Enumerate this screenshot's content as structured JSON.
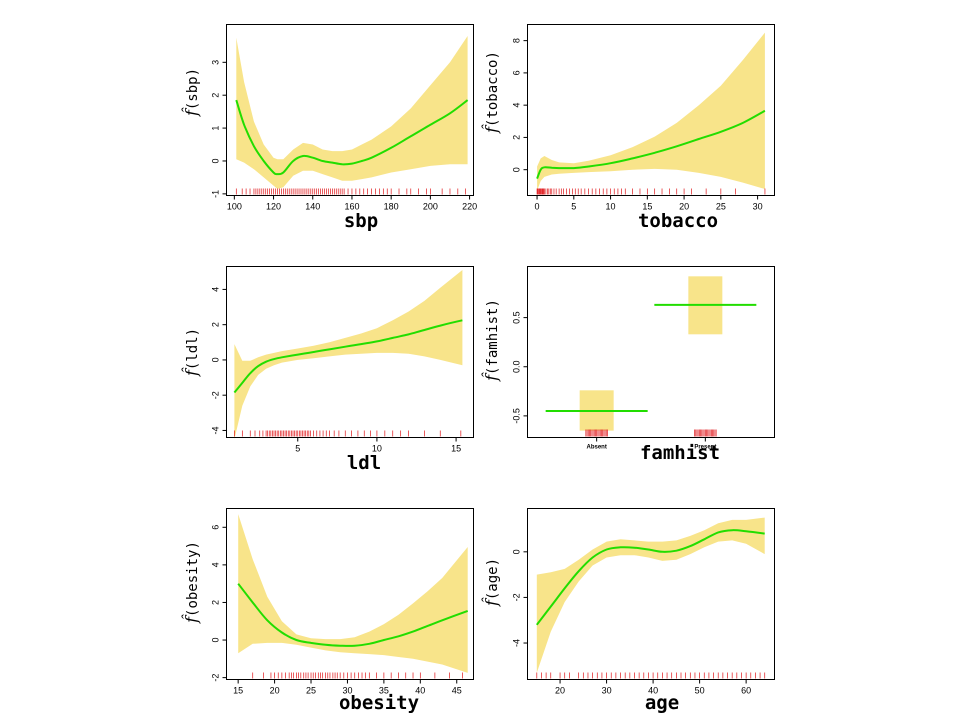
{
  "chart_data": [
    {
      "type": "line",
      "xlabel": "sbp",
      "ylabel": "sbp",
      "xlim": [
        96,
        222
      ],
      "ylim": [
        -1.05,
        4.15
      ],
      "xticks": [
        100,
        120,
        140,
        160,
        180,
        200,
        220
      ],
      "yticks": [
        -1,
        0,
        1,
        2,
        3
      ],
      "x": [
        101,
        105,
        110,
        115,
        120,
        122,
        125,
        130,
        135,
        140,
        145,
        150,
        155,
        160,
        165,
        170,
        180,
        190,
        200,
        210,
        219
      ],
      "fit": [
        1.85,
        1.1,
        0.45,
        0.0,
        -0.35,
        -0.4,
        -0.35,
        0.0,
        0.15,
        0.1,
        0.0,
        -0.05,
        -0.1,
        -0.08,
        0.0,
        0.1,
        0.4,
        0.75,
        1.1,
        1.45,
        1.85
      ],
      "lower": [
        0.05,
        -0.05,
        -0.25,
        -0.5,
        -0.75,
        -0.85,
        -0.8,
        -0.45,
        -0.3,
        -0.3,
        -0.4,
        -0.5,
        -0.6,
        -0.6,
        -0.55,
        -0.5,
        -0.35,
        -0.25,
        -0.15,
        -0.1,
        -0.1
      ],
      "upper": [
        3.75,
        2.4,
        1.2,
        0.5,
        0.1,
        0.05,
        0.05,
        0.35,
        0.55,
        0.5,
        0.35,
        0.3,
        0.3,
        0.35,
        0.5,
        0.65,
        1.05,
        1.6,
        2.3,
        3.0,
        3.8
      ],
      "rug": [
        101,
        104,
        106,
        108,
        110,
        111,
        112,
        113,
        114,
        115,
        116,
        117,
        118,
        119,
        120,
        121,
        122,
        123,
        124,
        125,
        126,
        127,
        128,
        129,
        130,
        131,
        132,
        133,
        134,
        135,
        136,
        137,
        138,
        139,
        140,
        141,
        142,
        143,
        144,
        145,
        146,
        147,
        148,
        149,
        150,
        151,
        152,
        153,
        154,
        155,
        156,
        158,
        160,
        162,
        164,
        166,
        168,
        170,
        172,
        174,
        176,
        178,
        180,
        184,
        188,
        190,
        194,
        198,
        200,
        206,
        210,
        214,
        218
      ]
    },
    {
      "type": "line",
      "xlabel": "tobacco",
      "ylabel": "tobacco",
      "xlim": [
        -1.3,
        32.3
      ],
      "ylim": [
        -1.6,
        9.0
      ],
      "xticks": [
        0,
        5,
        10,
        15,
        20,
        25,
        30
      ],
      "yticks": [
        0,
        2,
        4,
        6,
        8
      ],
      "x": [
        0,
        0.5,
        1,
        2,
        3,
        5,
        7,
        10,
        13,
        16,
        19,
        22,
        25,
        28,
        31
      ],
      "fit": [
        -0.55,
        0.0,
        0.15,
        0.12,
        0.1,
        0.1,
        0.2,
        0.4,
        0.7,
        1.05,
        1.45,
        1.9,
        2.35,
        2.9,
        3.65
      ],
      "lower": [
        -1.3,
        -0.7,
        -0.45,
        -0.3,
        -0.25,
        -0.2,
        -0.15,
        -0.1,
        0.0,
        0.05,
        0.0,
        -0.2,
        -0.45,
        -0.8,
        -1.2
      ],
      "upper": [
        0.2,
        0.7,
        0.85,
        0.6,
        0.45,
        0.4,
        0.55,
        0.9,
        1.4,
        2.05,
        2.9,
        4.0,
        5.2,
        6.8,
        8.5
      ],
      "rug": [
        0,
        0.1,
        0.2,
        0.3,
        0.4,
        0.5,
        0.6,
        0.7,
        0.8,
        0.9,
        1.0,
        1.2,
        1.4,
        1.6,
        1.8,
        2.0,
        2.3,
        2.6,
        3.0,
        3.3,
        3.6,
        4.0,
        4.4,
        4.8,
        5.2,
        5.6,
        6.0,
        6.5,
        7.0,
        7.5,
        8.0,
        8.5,
        9.0,
        9.5,
        10,
        10.5,
        11,
        11.5,
        12,
        13,
        14,
        15,
        16,
        17,
        18,
        19,
        20,
        21,
        23,
        25,
        27,
        31
      ]
    },
    {
      "type": "line",
      "xlabel": "ldl",
      "ylabel": "ldl",
      "xlim": [
        0.5,
        16.1
      ],
      "ylim": [
        -4.4,
        5.3
      ],
      "xticks": [
        5,
        10,
        15
      ],
      "yticks": [
        -4,
        -2,
        0,
        2,
        4
      ],
      "x": [
        1,
        1.5,
        2,
        2.5,
        3,
        3.5,
        4,
        5,
        6,
        7,
        8,
        9,
        10,
        11,
        12,
        13,
        14,
        15.4
      ],
      "fit": [
        -1.85,
        -1.3,
        -0.75,
        -0.35,
        -0.1,
        0.05,
        0.15,
        0.3,
        0.45,
        0.6,
        0.75,
        0.9,
        1.05,
        1.25,
        1.45,
        1.7,
        1.95,
        2.25
      ],
      "lower": [
        -4.5,
        -2.6,
        -1.5,
        -0.85,
        -0.5,
        -0.3,
        -0.15,
        0.0,
        0.1,
        0.2,
        0.3,
        0.35,
        0.4,
        0.4,
        0.35,
        0.2,
        0.0,
        -0.3
      ],
      "upper": [
        0.9,
        -0.05,
        -0.05,
        0.15,
        0.3,
        0.4,
        0.5,
        0.65,
        0.8,
        1.0,
        1.25,
        1.5,
        1.8,
        2.25,
        2.75,
        3.35,
        4.1,
        5.1
      ],
      "rug": [
        1.0,
        1.5,
        2.0,
        2.3,
        2.6,
        2.8,
        3.0,
        3.1,
        3.2,
        3.3,
        3.4,
        3.5,
        3.6,
        3.7,
        3.8,
        3.9,
        4.0,
        4.1,
        4.2,
        4.3,
        4.4,
        4.5,
        4.6,
        4.7,
        4.8,
        4.9,
        5.0,
        5.1,
        5.2,
        5.3,
        5.4,
        5.5,
        5.6,
        5.7,
        5.8,
        6.0,
        6.2,
        6.4,
        6.6,
        6.8,
        7.0,
        7.3,
        7.6,
        8.0,
        8.4,
        8.8,
        9.2,
        9.6,
        10,
        10.5,
        11,
        11.5,
        12,
        13,
        14,
        15.3
      ]
    },
    {
      "type": "bar",
      "xlabel": "famhist",
      "ylabel": "famhist",
      "categories": [
        "Absent",
        "Present"
      ],
      "ylim": [
        -0.72,
        1.02
      ],
      "yticks": [
        -0.5,
        0.0,
        0.5
      ],
      "fit": [
        -0.45,
        0.63
      ],
      "lower": [
        -0.65,
        0.33
      ],
      "upper": [
        -0.24,
        0.92
      ]
    },
    {
      "type": "line",
      "xlabel": "obesity",
      "ylabel": "obesity",
      "xlim": [
        13.4,
        47.3
      ],
      "ylim": [
        -2.1,
        7.0
      ],
      "xticks": [
        15,
        20,
        25,
        30,
        35,
        40,
        45
      ],
      "yticks": [
        -2,
        0,
        2,
        4,
        6
      ],
      "x": [
        15,
        17,
        19,
        21,
        23,
        25,
        27,
        29,
        31,
        33,
        35,
        37,
        39,
        41,
        43,
        46.5
      ],
      "fit": [
        3.0,
        2.0,
        1.05,
        0.4,
        0.0,
        -0.15,
        -0.25,
        -0.3,
        -0.3,
        -0.2,
        0.0,
        0.2,
        0.45,
        0.75,
        1.05,
        1.55
      ],
      "lower": [
        -0.7,
        -0.2,
        -0.15,
        -0.15,
        -0.25,
        -0.4,
        -0.55,
        -0.65,
        -0.7,
        -0.75,
        -0.8,
        -0.9,
        -1.0,
        -1.15,
        -1.3,
        -1.75
      ],
      "upper": [
        6.7,
        4.3,
        2.3,
        1.0,
        0.3,
        0.1,
        0.05,
        0.05,
        0.15,
        0.45,
        0.85,
        1.35,
        1.95,
        2.6,
        3.3,
        4.95
      ],
      "rug": [
        17,
        18.5,
        19.5,
        20,
        20.5,
        21,
        21.5,
        22,
        22.3,
        22.6,
        23,
        23.3,
        23.6,
        24,
        24.3,
        24.6,
        25,
        25.3,
        25.6,
        26,
        26.3,
        26.6,
        27,
        27.3,
        27.6,
        28,
        28.3,
        28.6,
        29,
        29.5,
        30,
        30.5,
        31,
        31.5,
        32,
        32.5,
        33,
        34,
        35,
        36,
        37,
        38,
        39,
        40,
        42,
        44,
        45.8
      ]
    },
    {
      "type": "line",
      "xlabel": "age",
      "ylabel": "age",
      "xlim": [
        13.0,
        66.1
      ],
      "ylim": [
        -5.6,
        1.9
      ],
      "xticks": [
        20,
        30,
        40,
        50,
        60
      ],
      "yticks": [
        -4,
        -2,
        0
      ],
      "x": [
        15,
        18,
        21,
        24,
        27,
        30,
        33,
        36,
        39,
        42,
        45,
        48,
        51,
        54,
        57,
        60,
        64
      ],
      "fit": [
        -3.2,
        -2.4,
        -1.6,
        -0.85,
        -0.25,
        0.1,
        0.2,
        0.18,
        0.1,
        0.0,
        0.05,
        0.25,
        0.55,
        0.85,
        0.95,
        0.9,
        0.8
      ],
      "lower": [
        -5.3,
        -3.5,
        -2.2,
        -1.3,
        -0.6,
        -0.25,
        -0.15,
        -0.15,
        -0.25,
        -0.4,
        -0.35,
        -0.1,
        0.2,
        0.45,
        0.5,
        0.35,
        -0.1
      ],
      "upper": [
        -1.0,
        -0.9,
        -0.75,
        -0.35,
        0.1,
        0.45,
        0.55,
        0.5,
        0.45,
        0.45,
        0.5,
        0.7,
        0.95,
        1.25,
        1.4,
        1.4,
        1.5
      ],
      "rug": [
        15,
        16,
        17,
        18,
        20,
        21,
        22,
        24,
        25,
        26,
        27,
        28,
        29,
        30,
        31,
        32,
        33,
        34,
        35,
        36,
        37,
        38,
        39,
        40,
        41,
        42,
        43,
        44,
        45,
        46,
        47,
        48,
        49,
        50,
        51,
        52,
        53,
        54,
        55,
        56,
        57,
        58,
        59,
        60,
        61,
        62,
        63,
        64
      ]
    }
  ]
}
